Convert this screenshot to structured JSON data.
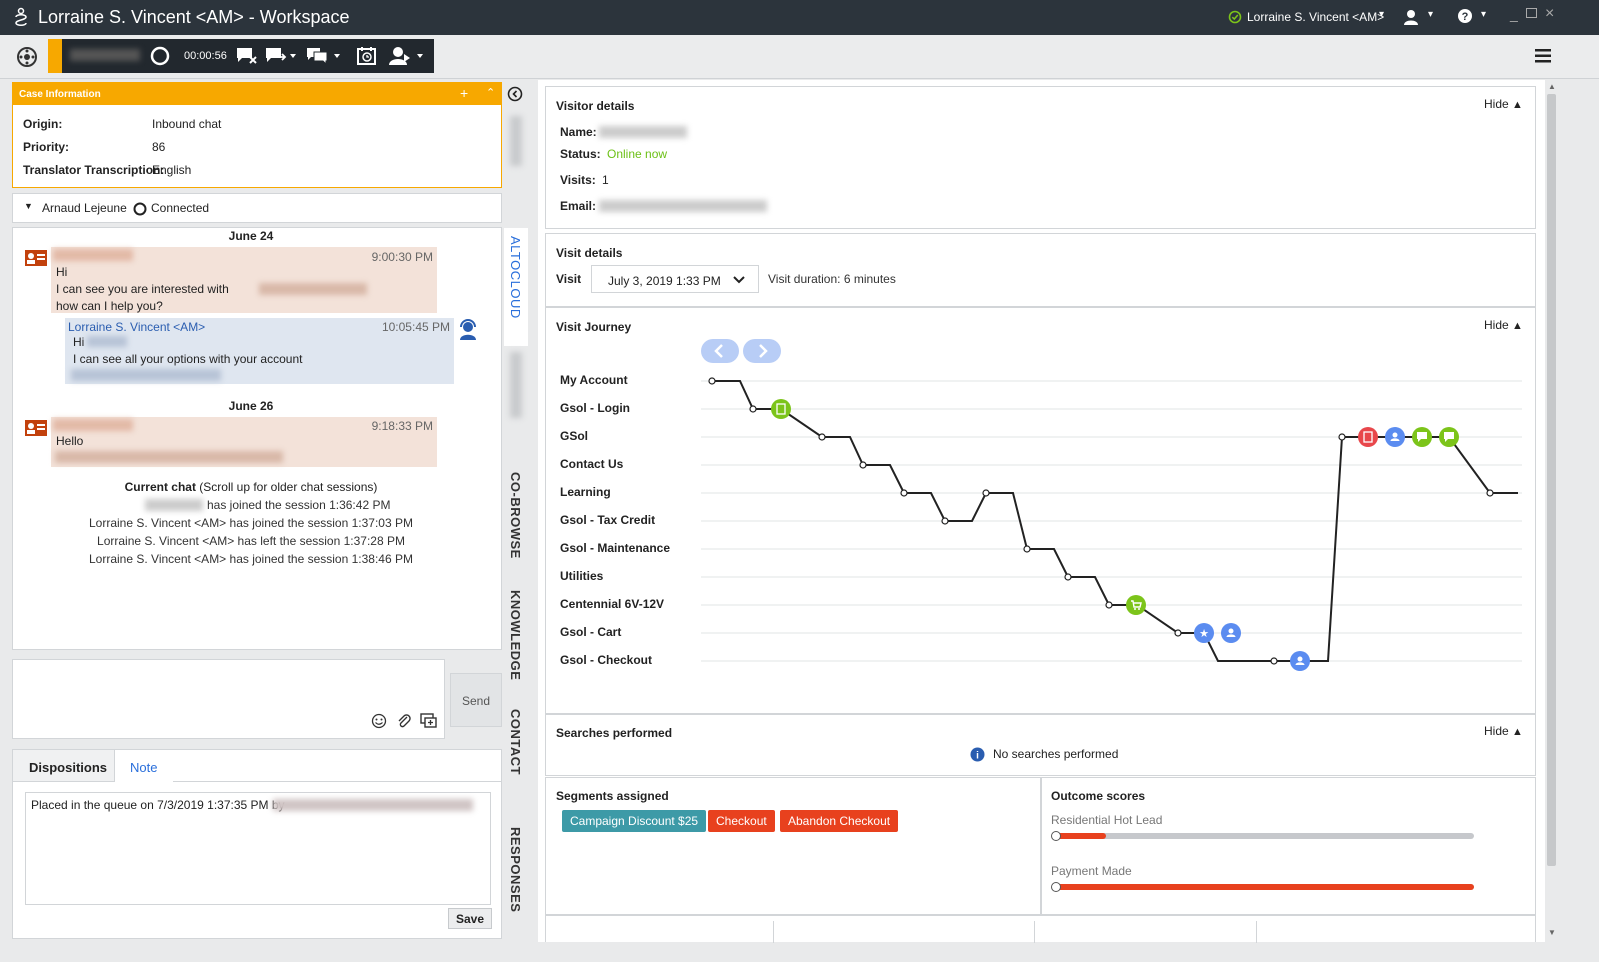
{
  "window": {
    "title": "Lorraine S. Vincent <AM> - Workspace",
    "user": "Lorraine S. Vincent <AM>"
  },
  "toolbar": {
    "timer": "00:00:56"
  },
  "case_info": {
    "header": "Case Information",
    "rows": [
      {
        "label": "Origin:",
        "value": "Inbound chat"
      },
      {
        "label": "Priority:",
        "value": "86"
      },
      {
        "label": "Translator Transcription:",
        "value": "English"
      }
    ]
  },
  "participant": {
    "name": "Arnaud Lejeune",
    "status": "Connected"
  },
  "chat": {
    "date1": "June 24",
    "msg1": {
      "time": "9:00:30 PM",
      "line1": "Hi",
      "line2": "I can see you are interested with",
      "line3": "how can I help you?"
    },
    "msg2": {
      "sender": "Lorraine S. Vincent <AM>",
      "time": "10:05:45 PM",
      "line1": "Hi",
      "line2": "I can see all your options with your account"
    },
    "date2": "June 26",
    "msg3": {
      "time": "9:18:33 PM",
      "line1": "Hello"
    },
    "current_bold": "Current chat",
    "current_rest": " (Scroll up for older chat sessions)",
    "events": [
      "has joined the session 1:36:42 PM",
      "Lorraine S. Vincent <AM> has joined the session 1:37:03 PM",
      "Lorraine S. Vincent <AM> has left the session 1:37:28 PM",
      "Lorraine S. Vincent <AM> has joined the session 1:38:46 PM"
    ]
  },
  "composer": {
    "send_label": "Send"
  },
  "bottom_tabs": {
    "dispositions": "Dispositions",
    "note": "Note",
    "note_text": "Placed in the queue on 7/3/2019 1:37:35 PM by",
    "save_label": "Save"
  },
  "side_tabs": [
    "ALTOCLOUD",
    "CO-BROWSE",
    "KNOWLEDGE",
    "CONTACT",
    "RESPONSES"
  ],
  "visitor": {
    "header": "Visitor details",
    "hide": "Hide",
    "name_label": "Name:",
    "status_label": "Status:",
    "status_value": "Online now",
    "visits_label": "Visits:",
    "visits_value": "1",
    "email_label": "Email:"
  },
  "visit_details": {
    "header": "Visit details",
    "visit_label": "Visit",
    "visit_value": "July 3, 2019 1:33 PM",
    "duration": "Visit duration: 6 minutes"
  },
  "journey": {
    "header": "Visit Journey",
    "hide": "Hide",
    "pages": [
      "My Account",
      "Gsol - Login",
      "GSol",
      "Contact Us",
      "Learning",
      "Gsol - Tax Credit",
      "Gsol - Maintenance",
      "Utilities",
      "Centennial 6V-12V",
      "Gsol - Cart",
      "Gsol - Checkout"
    ]
  },
  "searches": {
    "header": "Searches performed",
    "hide": "Hide",
    "empty": "No searches performed"
  },
  "segments": {
    "header": "Segments assigned",
    "items": [
      {
        "label": "Campaign Discount $25",
        "color": "#3d9aa7"
      },
      {
        "label": "Checkout",
        "color": "#e8411e"
      },
      {
        "label": "Abandon Checkout",
        "color": "#e8411e"
      }
    ]
  },
  "outcomes": {
    "header": "Outcome scores",
    "items": [
      {
        "label": "Residential Hot Lead",
        "score": 0.12
      },
      {
        "label": "Payment Made",
        "score": 1.0
      }
    ]
  },
  "colors": {
    "accent_orange": "#f7a800",
    "green": "#7cc41a",
    "blue": "#5b8cf0",
    "red": "#e8474b"
  }
}
